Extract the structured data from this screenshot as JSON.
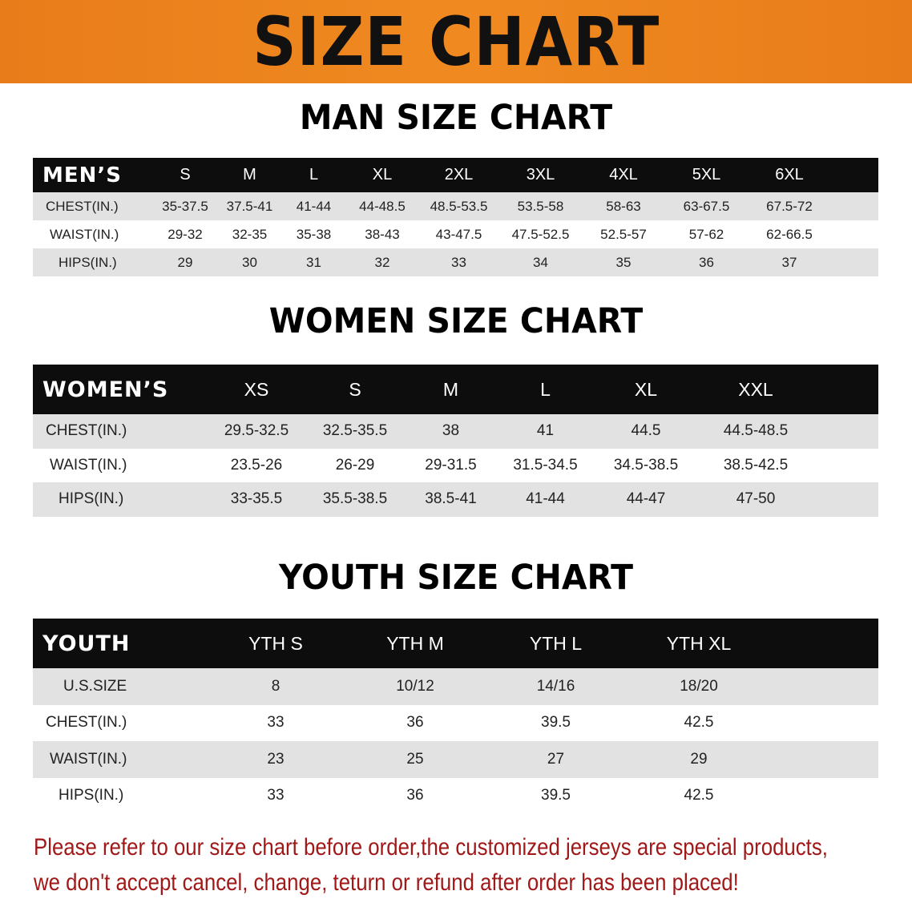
{
  "banner_title": "SIZE CHART",
  "men": {
    "title": "MAN SIZE CHART",
    "header": [
      "MEN’S",
      "S",
      "M",
      "L",
      "XL",
      "2XL",
      "3XL",
      "4XL",
      "5XL",
      "6XL"
    ],
    "rows": [
      [
        "CHEST(IN.)",
        "35-37.5",
        "37.5-41",
        "41-44",
        "44-48.5",
        "48.5-53.5",
        "53.5-58",
        "58-63",
        "63-67.5",
        "67.5-72"
      ],
      [
        "WAIST(IN.)",
        "29-32",
        "32-35",
        "35-38",
        "38-43",
        "43-47.5",
        "47.5-52.5",
        "52.5-57",
        "57-62",
        "62-66.5"
      ],
      [
        "HIPS(IN.)",
        "29",
        "30",
        "31",
        "32",
        "33",
        "34",
        "35",
        "36",
        "37"
      ]
    ]
  },
  "women": {
    "title": "WOMEN SIZE CHART",
    "header": [
      "WOMEN’S",
      "XS",
      "S",
      "M",
      "L",
      "XL",
      "XXL"
    ],
    "rows": [
      [
        "CHEST(IN.)",
        "29.5-32.5",
        "32.5-35.5",
        "38",
        "41",
        "44.5",
        "44.5-48.5"
      ],
      [
        "WAIST(IN.)",
        "23.5-26",
        "26-29",
        "29-31.5",
        "31.5-34.5",
        "34.5-38.5",
        "38.5-42.5"
      ],
      [
        "HIPS(IN.)",
        "33-35.5",
        "35.5-38.5",
        "38.5-41",
        "41-44",
        "44-47",
        "47-50"
      ]
    ]
  },
  "youth": {
    "title": "YOUTH SIZE CHART",
    "header": [
      "YOUTH",
      "YTH S",
      "YTH M",
      "YTH L",
      "YTH XL"
    ],
    "rows": [
      [
        "U.S.SIZE",
        "8",
        "10/12",
        "14/16",
        "18/20"
      ],
      [
        "CHEST(IN.)",
        "33",
        "36",
        "39.5",
        "42.5"
      ],
      [
        "WAIST(IN.)",
        "23",
        "25",
        "27",
        "29"
      ],
      [
        "HIPS(IN.)",
        "33",
        "36",
        "39.5",
        "42.5"
      ]
    ]
  },
  "note": {
    "line1": "Please refer to our size chart before order,the customized jerseys are special products,",
    "line2": "we don't accept cancel, change, teturn or refund after order has been placed!"
  },
  "colors": {
    "banner": "#ef861e",
    "header_bg": "#0d0d0d",
    "stripe": "#e2e2e2",
    "note": "#a01818"
  }
}
